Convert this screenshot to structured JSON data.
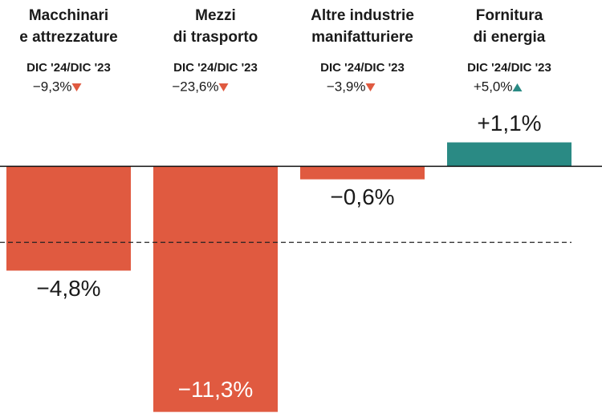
{
  "chart_data": {
    "type": "bar",
    "categories": [
      [
        "Macchinari",
        "e attrezzature"
      ],
      [
        "Mezzi",
        "di trasporto"
      ],
      [
        "Altre industrie",
        "manifatturiere"
      ],
      [
        "Fornitura",
        "di energia"
      ]
    ],
    "period_label": "DIC '24/DIC '23",
    "changes": [
      -9.3,
      -23.6,
      -3.9,
      5.0
    ],
    "change_labels": [
      "−9,3%",
      "−23,6%",
      "−3,9%",
      "+5,0%"
    ],
    "values": [
      -4.8,
      -11.3,
      -0.6,
      1.1
    ],
    "value_labels": [
      "−4,8%",
      "−11,3%",
      "−0,6%",
      "+1,1%"
    ],
    "negative_color": "#e05a40",
    "positive_color": "#2a8a84",
    "reference_line": -3.5,
    "ylim": [
      -11.35,
      7.65
    ]
  }
}
